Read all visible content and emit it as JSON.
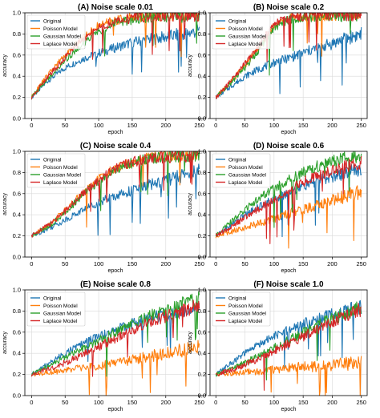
{
  "figure": {
    "series_names": [
      "Original",
      "Poisson Model",
      "Gaussian Model",
      "Laplace Model"
    ],
    "colors": {
      "Original": "#1f77b4",
      "Poisson Model": "#ff7f0e",
      "Gaussian Model": "#2ca02c",
      "Laplace Model": "#d62728"
    }
  },
  "chart_data": [
    {
      "type": "line",
      "title": "(A)  Noise scale 0.01",
      "xlabel": "epoch",
      "ylabel": "accuracy",
      "xlim": [
        -10,
        260
      ],
      "ylim": [
        0.0,
        1.0
      ],
      "xticks": [
        0,
        50,
        100,
        150,
        200,
        250
      ],
      "yticks": [
        0.0,
        0.2,
        0.4,
        0.6,
        0.8,
        1.0
      ],
      "grid": true,
      "legend": "top-left",
      "series": [
        {
          "name": "Original",
          "x": [
            0,
            25,
            50,
            75,
            100,
            125,
            150,
            175,
            200,
            225,
            250
          ],
          "y": [
            0.2,
            0.36,
            0.48,
            0.56,
            0.62,
            0.67,
            0.72,
            0.75,
            0.77,
            0.8,
            0.83
          ]
        },
        {
          "name": "Poisson Model",
          "x": [
            0,
            25,
            50,
            75,
            100,
            125,
            150,
            175,
            200,
            225,
            250
          ],
          "y": [
            0.2,
            0.42,
            0.6,
            0.76,
            0.88,
            0.93,
            0.96,
            0.97,
            0.98,
            0.98,
            0.99
          ]
        },
        {
          "name": "Gaussian Model",
          "x": [
            0,
            25,
            50,
            75,
            100,
            125,
            150,
            175,
            200,
            225,
            250
          ],
          "y": [
            0.2,
            0.38,
            0.55,
            0.7,
            0.82,
            0.9,
            0.94,
            0.96,
            0.97,
            0.97,
            0.98
          ]
        },
        {
          "name": "Laplace Model",
          "x": [
            0,
            25,
            50,
            75,
            100,
            125,
            150,
            175,
            200,
            225,
            250
          ],
          "y": [
            0.2,
            0.4,
            0.58,
            0.74,
            0.86,
            0.92,
            0.95,
            0.97,
            0.98,
            0.98,
            0.99
          ]
        }
      ]
    },
    {
      "type": "line",
      "title": "(B)  Noise scale 0.2",
      "xlabel": "epoch",
      "ylabel": "accuracy",
      "xlim": [
        -10,
        260
      ],
      "ylim": [
        0.0,
        1.0
      ],
      "xticks": [
        0,
        50,
        100,
        150,
        200,
        250
      ],
      "yticks": [
        0.0,
        0.2,
        0.4,
        0.6,
        0.8,
        1.0
      ],
      "grid": true,
      "legend": "top-left",
      "series": [
        {
          "name": "Original",
          "x": [
            0,
            25,
            50,
            75,
            100,
            125,
            150,
            175,
            200,
            225,
            250
          ],
          "y": [
            0.2,
            0.3,
            0.4,
            0.47,
            0.53,
            0.57,
            0.62,
            0.67,
            0.71,
            0.76,
            0.8
          ]
        },
        {
          "name": "Poisson Model",
          "x": [
            0,
            25,
            50,
            75,
            100,
            125,
            150,
            175,
            200,
            225,
            250
          ],
          "y": [
            0.2,
            0.34,
            0.5,
            0.68,
            0.88,
            0.95,
            0.97,
            0.98,
            0.98,
            0.99,
            0.99
          ]
        },
        {
          "name": "Gaussian Model",
          "x": [
            0,
            25,
            50,
            75,
            100,
            125,
            150,
            175,
            200,
            225,
            250
          ],
          "y": [
            0.2,
            0.33,
            0.48,
            0.66,
            0.86,
            0.94,
            0.96,
            0.97,
            0.98,
            0.98,
            0.98
          ]
        },
        {
          "name": "Laplace Model",
          "x": [
            0,
            25,
            50,
            75,
            100,
            125,
            150,
            175,
            200,
            225,
            250
          ],
          "y": [
            0.2,
            0.35,
            0.52,
            0.7,
            0.89,
            0.95,
            0.97,
            0.98,
            0.98,
            0.99,
            0.99
          ]
        }
      ]
    },
    {
      "type": "line",
      "title": "(C)  Noise scale 0.4",
      "xlabel": "epoch",
      "ylabel": "accuracy",
      "xlim": [
        -10,
        260
      ],
      "ylim": [
        0.0,
        1.0
      ],
      "xticks": [
        0,
        50,
        100,
        150,
        200,
        250
      ],
      "yticks": [
        0.0,
        0.2,
        0.4,
        0.6,
        0.8,
        1.0
      ],
      "grid": true,
      "legend": "top-left",
      "series": [
        {
          "name": "Original",
          "x": [
            0,
            25,
            50,
            75,
            100,
            125,
            150,
            175,
            200,
            225,
            250
          ],
          "y": [
            0.2,
            0.27,
            0.35,
            0.44,
            0.52,
            0.58,
            0.63,
            0.68,
            0.73,
            0.77,
            0.82
          ]
        },
        {
          "name": "Poisson Model",
          "x": [
            0,
            25,
            50,
            75,
            100,
            125,
            150,
            175,
            200,
            225,
            250
          ],
          "y": [
            0.2,
            0.3,
            0.44,
            0.6,
            0.74,
            0.85,
            0.9,
            0.94,
            0.96,
            0.97,
            0.98
          ]
        },
        {
          "name": "Gaussian Model",
          "x": [
            0,
            25,
            50,
            75,
            100,
            125,
            150,
            175,
            200,
            225,
            250
          ],
          "y": [
            0.2,
            0.29,
            0.42,
            0.58,
            0.72,
            0.83,
            0.89,
            0.93,
            0.95,
            0.96,
            0.97
          ]
        },
        {
          "name": "Laplace Model",
          "x": [
            0,
            25,
            50,
            75,
            100,
            125,
            150,
            175,
            200,
            225,
            250
          ],
          "y": [
            0.2,
            0.3,
            0.43,
            0.59,
            0.73,
            0.84,
            0.9,
            0.93,
            0.95,
            0.96,
            0.97
          ]
        }
      ]
    },
    {
      "type": "line",
      "title": "(D)  Noise scale 0.6",
      "xlabel": "epoch",
      "ylabel": "accuracy",
      "xlim": [
        -10,
        260
      ],
      "ylim": [
        0.0,
        1.0
      ],
      "xticks": [
        0,
        50,
        100,
        150,
        200,
        250
      ],
      "yticks": [
        0.0,
        0.2,
        0.4,
        0.6,
        0.8,
        1.0
      ],
      "grid": true,
      "legend": "top-left",
      "series": [
        {
          "name": "Original",
          "x": [
            0,
            25,
            50,
            75,
            100,
            125,
            150,
            175,
            200,
            225,
            250
          ],
          "y": [
            0.2,
            0.3,
            0.4,
            0.48,
            0.55,
            0.61,
            0.67,
            0.72,
            0.76,
            0.8,
            0.84
          ]
        },
        {
          "name": "Poisson Model",
          "x": [
            0,
            25,
            50,
            75,
            100,
            125,
            150,
            175,
            200,
            225,
            250
          ],
          "y": [
            0.2,
            0.24,
            0.28,
            0.32,
            0.36,
            0.41,
            0.45,
            0.5,
            0.54,
            0.58,
            0.62
          ]
        },
        {
          "name": "Gaussian Model",
          "x": [
            0,
            25,
            50,
            75,
            100,
            125,
            150,
            175,
            200,
            225,
            250
          ],
          "y": [
            0.2,
            0.33,
            0.45,
            0.56,
            0.65,
            0.73,
            0.8,
            0.86,
            0.9,
            0.94,
            0.97
          ]
        },
        {
          "name": "Laplace Model",
          "x": [
            0,
            25,
            50,
            75,
            100,
            125,
            150,
            175,
            200,
            225,
            250
          ],
          "y": [
            0.2,
            0.28,
            0.37,
            0.46,
            0.55,
            0.63,
            0.71,
            0.77,
            0.82,
            0.86,
            0.9
          ]
        }
      ]
    },
    {
      "type": "line",
      "title": "(E)  Noise scale 0.8",
      "xlabel": "epoch",
      "ylabel": "accuracy",
      "xlim": [
        -10,
        260
      ],
      "ylim": [
        0.0,
        1.0
      ],
      "xticks": [
        0,
        50,
        100,
        150,
        200,
        250
      ],
      "yticks": [
        0.0,
        0.2,
        0.4,
        0.6,
        0.8,
        1.0
      ],
      "grid": true,
      "legend": "top-left",
      "series": [
        {
          "name": "Original",
          "x": [
            0,
            25,
            50,
            75,
            100,
            125,
            150,
            175,
            200,
            225,
            250
          ],
          "y": [
            0.2,
            0.3,
            0.4,
            0.49,
            0.56,
            0.62,
            0.68,
            0.73,
            0.77,
            0.81,
            0.85
          ]
        },
        {
          "name": "Poisson Model",
          "x": [
            0,
            25,
            50,
            75,
            100,
            125,
            150,
            175,
            200,
            225,
            250
          ],
          "y": [
            0.2,
            0.22,
            0.24,
            0.26,
            0.28,
            0.31,
            0.34,
            0.37,
            0.4,
            0.43,
            0.46
          ]
        },
        {
          "name": "Gaussian Model",
          "x": [
            0,
            25,
            50,
            75,
            100,
            125,
            150,
            175,
            200,
            225,
            250
          ],
          "y": [
            0.2,
            0.28,
            0.36,
            0.44,
            0.52,
            0.6,
            0.68,
            0.75,
            0.82,
            0.87,
            0.92
          ]
        },
        {
          "name": "Laplace Model",
          "x": [
            0,
            25,
            50,
            75,
            100,
            125,
            150,
            175,
            200,
            225,
            250
          ],
          "y": [
            0.2,
            0.25,
            0.31,
            0.38,
            0.46,
            0.54,
            0.62,
            0.69,
            0.75,
            0.8,
            0.86
          ]
        }
      ]
    },
    {
      "type": "line",
      "title": "(F)  Noise scale 1.0",
      "xlabel": "epoch",
      "ylabel": "accuracy",
      "xlim": [
        -10,
        260
      ],
      "ylim": [
        0.0,
        1.0
      ],
      "xticks": [
        0,
        50,
        100,
        150,
        200,
        250
      ],
      "yticks": [
        0.0,
        0.2,
        0.4,
        0.6,
        0.8,
        1.0
      ],
      "grid": true,
      "legend": "top-left",
      "series": [
        {
          "name": "Original",
          "x": [
            0,
            25,
            50,
            75,
            100,
            125,
            150,
            175,
            200,
            225,
            250
          ],
          "y": [
            0.2,
            0.3,
            0.4,
            0.49,
            0.56,
            0.62,
            0.68,
            0.73,
            0.77,
            0.81,
            0.84
          ]
        },
        {
          "name": "Poisson Model",
          "x": [
            0,
            25,
            50,
            75,
            100,
            125,
            150,
            175,
            200,
            225,
            250
          ],
          "y": [
            0.2,
            0.21,
            0.22,
            0.23,
            0.25,
            0.26,
            0.27,
            0.28,
            0.29,
            0.3,
            0.32
          ]
        },
        {
          "name": "Gaussian Model",
          "x": [
            0,
            25,
            50,
            75,
            100,
            125,
            150,
            175,
            200,
            225,
            250
          ],
          "y": [
            0.2,
            0.25,
            0.31,
            0.38,
            0.45,
            0.52,
            0.6,
            0.67,
            0.73,
            0.78,
            0.84
          ]
        },
        {
          "name": "Laplace Model",
          "x": [
            0,
            25,
            50,
            75,
            100,
            125,
            150,
            175,
            200,
            225,
            250
          ],
          "y": [
            0.2,
            0.24,
            0.29,
            0.35,
            0.42,
            0.49,
            0.56,
            0.63,
            0.7,
            0.76,
            0.82
          ]
        }
      ]
    }
  ]
}
